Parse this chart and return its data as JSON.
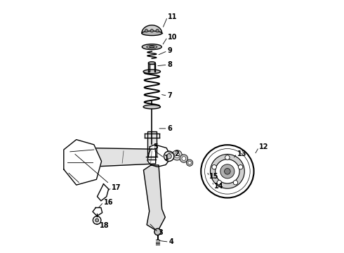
{
  "background_color": "#ffffff",
  "line_color": "#000000",
  "figure_width": 4.9,
  "figure_height": 3.6,
  "dpi": 100
}
